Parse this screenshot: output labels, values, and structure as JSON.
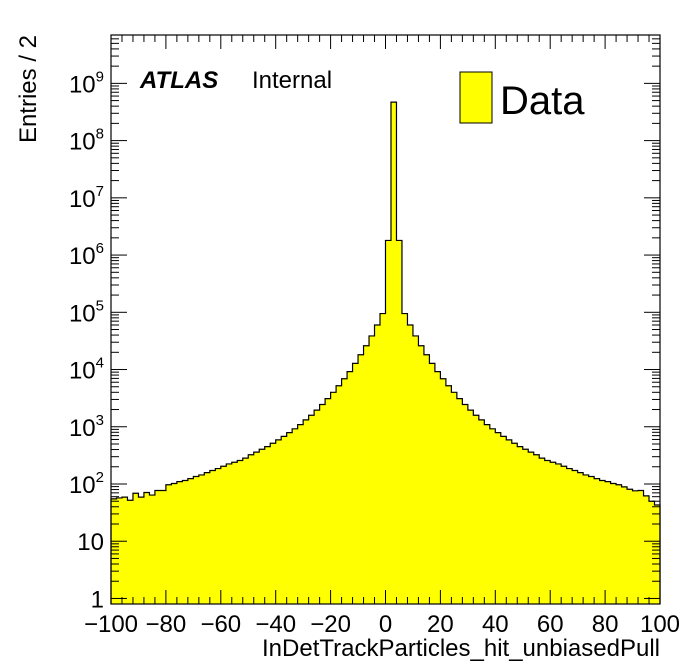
{
  "chart_data": {
    "type": "histogram",
    "scale_y": "log",
    "xlim": [
      -100,
      100
    ],
    "ylim": [
      0.8,
      7000000000
    ],
    "bin_width": 2,
    "xlabel": "InDetTrackParticles_hit_unbiasedPull",
    "ylabel": "Entries / 2",
    "x_tick_labels": [
      "−100",
      "−80",
      "−60",
      "−40",
      "−20",
      "0",
      "20",
      "40",
      "60",
      "80",
      "100"
    ],
    "x_tick_values": [
      -100,
      -80,
      -60,
      -40,
      -20,
      0,
      20,
      40,
      60,
      80,
      100
    ],
    "y_tick_labels": [
      {
        "base": "1",
        "exp": "",
        "value": 1
      },
      {
        "base": "10",
        "exp": "",
        "value": 10
      },
      {
        "base": "10",
        "exp": "2",
        "value": 100
      },
      {
        "base": "10",
        "exp": "3",
        "value": 1000
      },
      {
        "base": "10",
        "exp": "4",
        "value": 10000
      },
      {
        "base": "10",
        "exp": "5",
        "value": 100000
      },
      {
        "base": "10",
        "exp": "6",
        "value": 1000000
      },
      {
        "base": "10",
        "exp": "7",
        "value": 10000000
      },
      {
        "base": "10",
        "exp": "8",
        "value": 100000000
      },
      {
        "base": "10",
        "exp": "9",
        "value": 1000000000
      }
    ],
    "atlas_label": "ATLAS",
    "atlas_sublabel": "Internal",
    "series": [
      {
        "name": "Data",
        "fill": "#ffff00",
        "stroke": "#000000",
        "bin_edges_start": -100,
        "values": [
          55,
          57,
          59,
          52,
          69,
          59,
          71,
          64,
          77,
          77,
          97,
          102,
          110,
          115,
          124,
          135,
          144,
          158,
          172,
          186,
          204,
          224,
          240,
          257,
          283,
          324,
          360,
          405,
          450,
          515,
          590,
          680,
          790,
          920,
          1090,
          1320,
          1590,
          1950,
          2450,
          3100,
          4000,
          5200,
          6900,
          9200,
          12800,
          18100,
          26000,
          38600,
          60000,
          95000,
          1800000,
          470000000,
          1800000,
          95000,
          60000,
          38600,
          26000,
          18100,
          12800,
          9200,
          6900,
          5200,
          4000,
          3100,
          2450,
          1950,
          1590,
          1320,
          1090,
          920,
          790,
          680,
          590,
          515,
          450,
          405,
          360,
          324,
          283,
          257,
          240,
          224,
          204,
          186,
          172,
          158,
          144,
          135,
          124,
          115,
          110,
          102,
          97,
          89,
          81,
          76,
          77,
          62,
          50,
          43
        ]
      }
    ],
    "legend": {
      "position": "top-right",
      "entries": [
        "Data"
      ]
    }
  }
}
